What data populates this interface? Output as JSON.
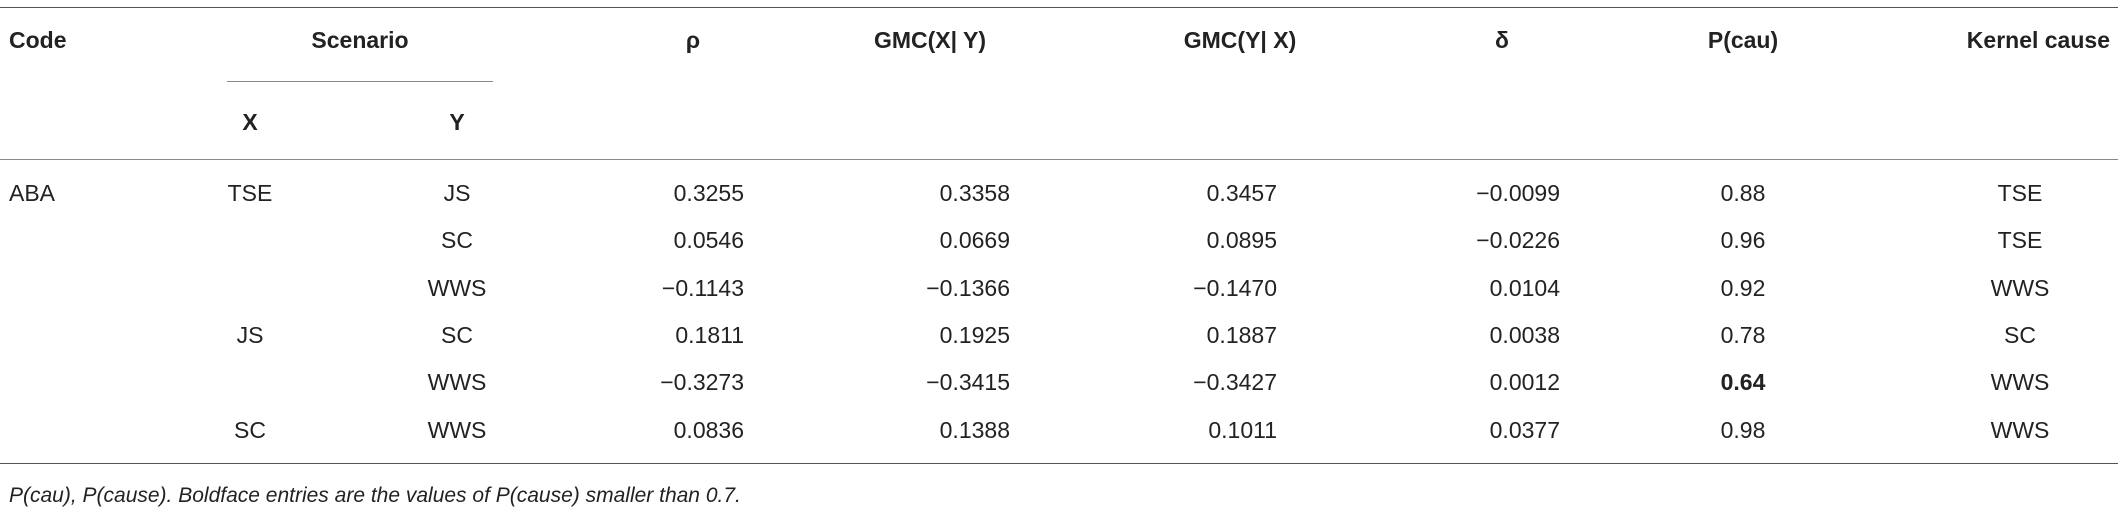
{
  "table": {
    "header": [
      "Code",
      "Scenario",
      "ρ",
      "GMC(X| Y)",
      "GMC(Y| X)",
      "δ",
      "P(cau)",
      "Kernel cause"
    ],
    "subheader": [
      "X",
      "Y"
    ],
    "rows": [
      [
        "ABA",
        "TSE",
        "JS",
        "0.3255",
        "0.3358",
        "0.3457",
        "−0.0099",
        "0.88",
        "TSE"
      ],
      [
        null,
        null,
        "SC",
        "0.0546",
        "0.0669",
        "0.0895",
        "−0.0226",
        "0.96",
        "TSE"
      ],
      [
        null,
        null,
        "WWS",
        "−0.1143",
        "−0.1366",
        "−0.1470",
        "0.0104",
        "0.92",
        "WWS"
      ],
      [
        null,
        "JS",
        "SC",
        "0.1811",
        "0.1925",
        "0.1887",
        "0.0038",
        "0.78",
        "SC"
      ],
      [
        null,
        null,
        "WWS",
        "−0.3273",
        "−0.3415",
        "−0.3427",
        "0.0012",
        {
          "value": "0.64",
          "bold": true
        },
        "WWS"
      ],
      [
        null,
        "SC",
        "WWS",
        "0.0836",
        "0.1388",
        "0.1011",
        "0.0377",
        "0.98",
        "WWS"
      ]
    ],
    "footnote": "P(cau), P(cause). Boldface entries are the values of P(cause) smaller than 0.7."
  }
}
